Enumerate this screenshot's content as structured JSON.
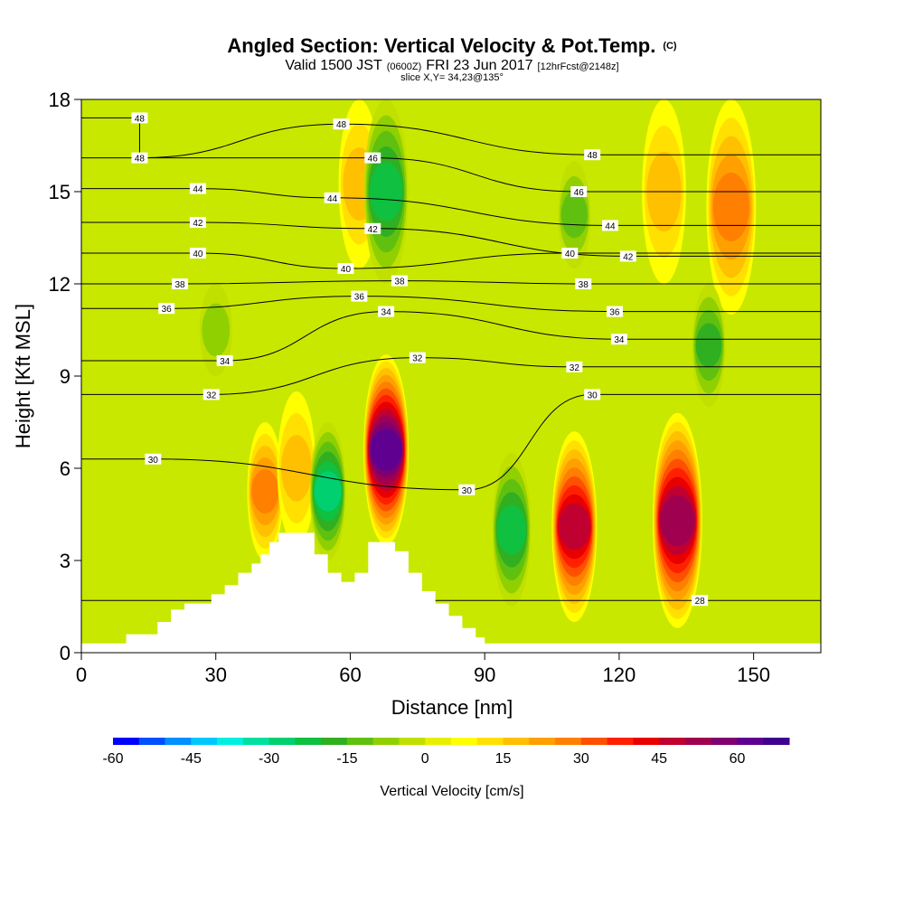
{
  "title": {
    "main": "Angled Section: Vertical Velocity & Pot.Temp.",
    "unit_tag": "(C)",
    "valid_prefix": "Valid 1500 JST",
    "valid_zulu": "(0600Z)",
    "valid_date": "FRI 23 Jun 2017",
    "forecast": "[12hrFcst@2148z]",
    "slice": "slice X,Y= 34,23@135°"
  },
  "chart_data": {
    "type": "heatmap",
    "xlabel": "Distance [nm]",
    "ylabel": "Height [Kft MSL]",
    "xlim": [
      0,
      165
    ],
    "ylim": [
      0,
      18
    ],
    "x_ticks": [
      "0",
      "30",
      "60",
      "90",
      "120",
      "150"
    ],
    "y_ticks": [
      "0",
      "3",
      "6",
      "9",
      "12",
      "15",
      "18"
    ],
    "colorbar": {
      "label": "Vertical Velocity [cm/s]",
      "range": [
        -60,
        70
      ],
      "step": 5,
      "tick_labels": [
        "-60",
        "-45",
        "-30",
        "-15",
        "0",
        "15",
        "30",
        "45",
        "60"
      ],
      "colors": [
        "#0000ff",
        "#0050ff",
        "#0090ff",
        "#00c8ff",
        "#00f0e0",
        "#00e0a0",
        "#00d070",
        "#10c040",
        "#30b020",
        "#60c010",
        "#90d000",
        "#c0e000",
        "#e8f000",
        "#ffff00",
        "#ffe000",
        "#ffc000",
        "#ffa000",
        "#ff8000",
        "#ff5000",
        "#ff2000",
        "#e80000",
        "#c00030",
        "#a00050",
        "#800070",
        "#600090",
        "#400090"
      ]
    },
    "vertical_velocity_features": [
      {
        "kind": "updraft",
        "x": 68,
        "ybot": 3.5,
        "ytop": 9.7,
        "peak": 62
      },
      {
        "kind": "updraft",
        "x": 110,
        "ybot": 1.0,
        "ytop": 7.2,
        "peak": 45
      },
      {
        "kind": "updraft",
        "x": 133,
        "ybot": 0.8,
        "ytop": 7.8,
        "peak": 50
      },
      {
        "kind": "updraft",
        "x": 41,
        "ybot": 3.0,
        "ytop": 7.5,
        "peak": 25
      },
      {
        "kind": "updraft",
        "x": 48,
        "ybot": 3.5,
        "ytop": 8.5,
        "peak": 15
      },
      {
        "kind": "updraft",
        "x": 145,
        "ybot": 11.0,
        "ytop": 18,
        "peak": 25
      },
      {
        "kind": "updraft",
        "x": 130,
        "ybot": 12.0,
        "ytop": 18,
        "peak": 18
      },
      {
        "kind": "updraft",
        "x": 62,
        "ybot": 12.5,
        "ytop": 18,
        "peak": 15
      },
      {
        "kind": "downdraft",
        "x": 55,
        "ybot": 3.0,
        "ytop": 7.5,
        "peak": -30
      },
      {
        "kind": "downdraft",
        "x": 96,
        "ybot": 1.5,
        "ytop": 6.5,
        "peak": -25
      },
      {
        "kind": "downdraft",
        "x": 68,
        "ybot": 12.0,
        "ytop": 18,
        "peak": -25
      },
      {
        "kind": "downdraft",
        "x": 140,
        "ybot": 8.0,
        "ytop": 12.0,
        "peak": -20
      },
      {
        "kind": "downdraft",
        "x": 110,
        "ybot": 12.5,
        "ytop": 16.0,
        "peak": -15
      },
      {
        "kind": "downdraft",
        "x": 30,
        "ybot": 9.0,
        "ytop": 12.0,
        "peak": -10
      }
    ],
    "terrain_steps": [
      [
        10,
        0.6
      ],
      [
        17,
        1.0
      ],
      [
        20,
        1.4
      ],
      [
        23,
        1.6
      ],
      [
        29,
        1.9
      ],
      [
        32,
        2.2
      ],
      [
        35,
        2.6
      ],
      [
        38,
        2.9
      ],
      [
        40,
        3.2
      ],
      [
        42,
        3.6
      ],
      [
        44,
        3.9
      ],
      [
        52,
        3.2
      ],
      [
        55,
        2.6
      ],
      [
        58,
        2.3
      ],
      [
        61,
        2.6
      ],
      [
        64,
        3.6
      ],
      [
        70,
        3.3
      ],
      [
        73,
        2.6
      ],
      [
        76,
        2.0
      ],
      [
        79,
        1.6
      ],
      [
        82,
        1.2
      ],
      [
        85,
        0.8
      ],
      [
        88,
        0.5
      ],
      [
        90,
        0.3
      ],
      [
        95,
        0.3
      ]
    ],
    "theta_contour_labels": [
      {
        "text": "48",
        "x": 13,
        "y": 17.4
      },
      {
        "text": "48",
        "x": 13,
        "y": 16.1
      },
      {
        "text": "44",
        "x": 26,
        "y": 15.1
      },
      {
        "text": "42",
        "x": 26,
        "y": 14.0
      },
      {
        "text": "40",
        "x": 26,
        "y": 13.0
      },
      {
        "text": "38",
        "x": 22,
        "y": 12.0
      },
      {
        "text": "36",
        "x": 19,
        "y": 11.2
      },
      {
        "text": "34",
        "x": 32,
        "y": 9.5
      },
      {
        "text": "32",
        "x": 29,
        "y": 8.4
      },
      {
        "text": "30",
        "x": 16,
        "y": 6.3
      },
      {
        "text": "48",
        "x": 58,
        "y": 17.2
      },
      {
        "text": "46",
        "x": 65,
        "y": 16.1
      },
      {
        "text": "44",
        "x": 56,
        "y": 14.8
      },
      {
        "text": "42",
        "x": 65,
        "y": 13.8
      },
      {
        "text": "40",
        "x": 59,
        "y": 12.5
      },
      {
        "text": "38",
        "x": 71,
        "y": 12.1
      },
      {
        "text": "36",
        "x": 62,
        "y": 11.6
      },
      {
        "text": "34",
        "x": 68,
        "y": 11.1
      },
      {
        "text": "32",
        "x": 75,
        "y": 9.6
      },
      {
        "text": "30",
        "x": 86,
        "y": 5.3
      },
      {
        "text": "48",
        "x": 114,
        "y": 16.2
      },
      {
        "text": "46",
        "x": 111,
        "y": 15.0
      },
      {
        "text": "44",
        "x": 118,
        "y": 13.9
      },
      {
        "text": "42",
        "x": 122,
        "y": 12.9
      },
      {
        "text": "40",
        "x": 109,
        "y": 13.0
      },
      {
        "text": "38",
        "x": 112,
        "y": 12.0
      },
      {
        "text": "36",
        "x": 119,
        "y": 11.1
      },
      {
        "text": "34",
        "x": 120,
        "y": 10.2
      },
      {
        "text": "32",
        "x": 110,
        "y": 9.3
      },
      {
        "text": "30",
        "x": 114,
        "y": 8.4
      },
      {
        "text": "28",
        "x": 138,
        "y": 1.7
      }
    ]
  }
}
